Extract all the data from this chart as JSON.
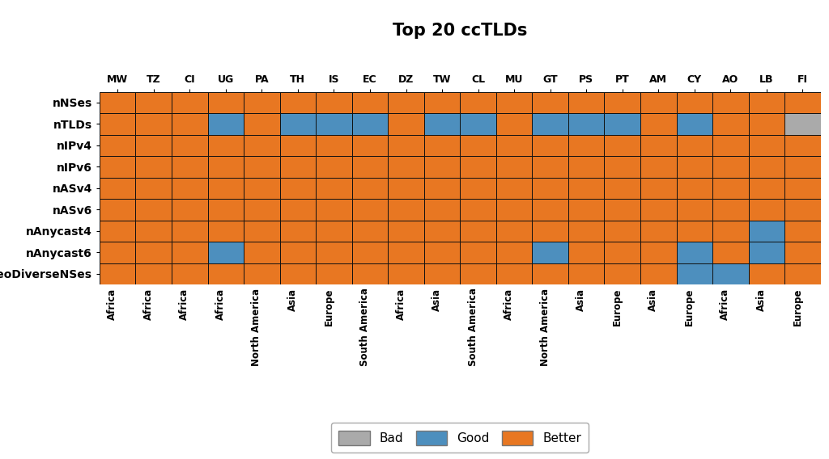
{
  "title": "Top 20 ccTLDs",
  "columns": [
    "MW",
    "TZ",
    "CI",
    "UG",
    "PA",
    "TH",
    "IS",
    "EC",
    "DZ",
    "TW",
    "CL",
    "MU",
    "GT",
    "PS",
    "PT",
    "AM",
    "CY",
    "AO",
    "LB",
    "FI"
  ],
  "regions": [
    "Africa",
    "Africa",
    "Africa",
    "Africa",
    "North America",
    "Asia",
    "Europe",
    "South America",
    "Africa",
    "Asia",
    "South America",
    "Africa",
    "North America",
    "Asia",
    "Europe",
    "Asia",
    "Europe",
    "Africa",
    "Asia",
    "Europe"
  ],
  "rows": [
    "nNSes",
    "nTLDs",
    "nIPv4",
    "nIPv6",
    "nASv4",
    "nASv6",
    "nAnycast4",
    "nAnycast6",
    "nGeoDiverseNSes"
  ],
  "data": [
    [
      2,
      2,
      2,
      2,
      2,
      2,
      2,
      2,
      2,
      2,
      2,
      2,
      2,
      2,
      2,
      2,
      2,
      2,
      2,
      2
    ],
    [
      2,
      2,
      2,
      1,
      2,
      1,
      1,
      1,
      2,
      1,
      1,
      2,
      1,
      1,
      1,
      2,
      1,
      2,
      2,
      0
    ],
    [
      2,
      2,
      2,
      2,
      2,
      2,
      2,
      2,
      2,
      2,
      2,
      2,
      2,
      2,
      2,
      2,
      2,
      2,
      2,
      2
    ],
    [
      2,
      2,
      2,
      2,
      2,
      2,
      2,
      2,
      2,
      2,
      2,
      2,
      2,
      2,
      2,
      2,
      2,
      2,
      2,
      2
    ],
    [
      2,
      2,
      2,
      2,
      2,
      2,
      2,
      2,
      2,
      2,
      2,
      2,
      2,
      2,
      2,
      2,
      2,
      2,
      2,
      2
    ],
    [
      2,
      2,
      2,
      2,
      2,
      2,
      2,
      2,
      2,
      2,
      2,
      2,
      2,
      2,
      2,
      2,
      2,
      2,
      2,
      2
    ],
    [
      2,
      2,
      2,
      2,
      2,
      2,
      2,
      2,
      2,
      2,
      2,
      2,
      2,
      2,
      2,
      2,
      2,
      2,
      1,
      2
    ],
    [
      2,
      2,
      2,
      1,
      2,
      2,
      2,
      2,
      2,
      2,
      2,
      2,
      1,
      2,
      2,
      2,
      1,
      2,
      1,
      2
    ],
    [
      2,
      2,
      2,
      2,
      2,
      2,
      2,
      2,
      2,
      2,
      2,
      2,
      2,
      2,
      2,
      2,
      1,
      1,
      2,
      2
    ]
  ],
  "color_bad": "#aaaaaa",
  "color_good": "#4d8fbe",
  "color_better": "#e87722",
  "legend_labels": [
    "Bad",
    "Good",
    "Better"
  ],
  "background_color": "#ffffff",
  "grid_color": "#111111",
  "title_fontsize": 15,
  "col_fontsize": 9,
  "row_fontsize": 10,
  "region_fontsize": 8.5,
  "legend_fontsize": 11
}
